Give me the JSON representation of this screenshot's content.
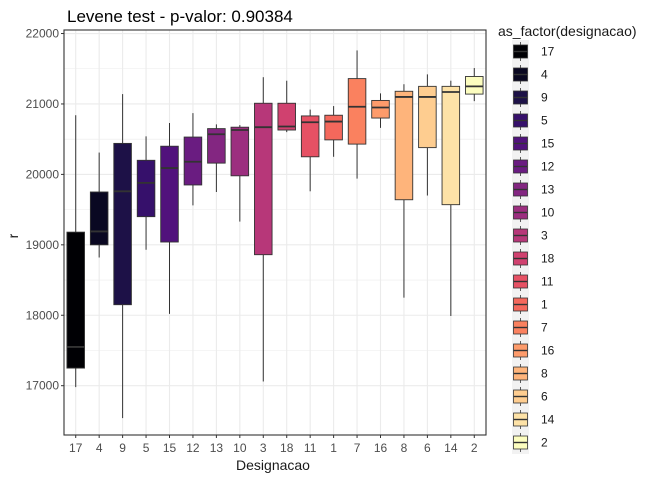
{
  "chart_data": {
    "type": "boxplot",
    "title": "Levene test - p-valor:  0.90384",
    "xlabel": "Designacao",
    "ylabel": "r",
    "ylim": [
      16300,
      22050
    ],
    "y_ticks": [
      17000,
      18000,
      19000,
      20000,
      21000,
      22000
    ],
    "grid": true,
    "legend": {
      "title": "as_factor(designacao)",
      "position": "right"
    },
    "categories": [
      "17",
      "4",
      "9",
      "5",
      "15",
      "12",
      "13",
      "10",
      "3",
      "18",
      "11",
      "1",
      "7",
      "16",
      "8",
      "6",
      "14",
      "2"
    ],
    "boxes": [
      {
        "name": "17",
        "min": 16980,
        "q1": 17250,
        "median": 17550,
        "q3": 19180,
        "max": 20840,
        "color": "#000004"
      },
      {
        "name": "4",
        "min": 18820,
        "q1": 19000,
        "median": 19190,
        "q3": 19750,
        "max": 20310,
        "color": "#0a0822"
      },
      {
        "name": "9",
        "min": 16540,
        "q1": 18150,
        "median": 19760,
        "q3": 20440,
        "max": 21140,
        "color": "#1d1147"
      },
      {
        "name": "5",
        "min": 18930,
        "q1": 19400,
        "median": 19880,
        "q3": 20200,
        "max": 20540,
        "color": "#36106b"
      },
      {
        "name": "15",
        "min": 18020,
        "q1": 19040,
        "median": 20090,
        "q3": 20400,
        "max": 20730,
        "color": "#51127c"
      },
      {
        "name": "12",
        "min": 19560,
        "q1": 19850,
        "median": 20180,
        "q3": 20530,
        "max": 20870,
        "color": "#6a1c81"
      },
      {
        "name": "13",
        "min": 19750,
        "q1": 20160,
        "median": 20570,
        "q3": 20650,
        "max": 20710,
        "color": "#832681"
      },
      {
        "name": "10",
        "min": 19330,
        "q1": 19980,
        "median": 20630,
        "q3": 20670,
        "max": 20700,
        "color": "#9c2e7f"
      },
      {
        "name": "3",
        "min": 17060,
        "q1": 18860,
        "median": 20670,
        "q3": 21010,
        "max": 21380,
        "color": "#b73779"
      },
      {
        "name": "18",
        "min": 20600,
        "q1": 20630,
        "median": 20680,
        "q3": 21010,
        "max": 21330,
        "color": "#d0416f"
      },
      {
        "name": "11",
        "min": 19760,
        "q1": 20250,
        "median": 20740,
        "q3": 20830,
        "max": 20920,
        "color": "#e65164"
      },
      {
        "name": "1",
        "min": 20250,
        "q1": 20490,
        "median": 20750,
        "q3": 20840,
        "max": 20970,
        "color": "#f4685c"
      },
      {
        "name": "7",
        "min": 19940,
        "q1": 20430,
        "median": 20960,
        "q3": 21360,
        "max": 21760,
        "color": "#fa815f"
      },
      {
        "name": "16",
        "min": 20660,
        "q1": 20800,
        "median": 20950,
        "q3": 21050,
        "max": 21150,
        "color": "#fd9b6b"
      },
      {
        "name": "8",
        "min": 18250,
        "q1": 19640,
        "median": 21100,
        "q3": 21180,
        "max": 21280,
        "color": "#feb47b"
      },
      {
        "name": "6",
        "min": 19700,
        "q1": 20380,
        "median": 21100,
        "q3": 21250,
        "max": 21420,
        "color": "#fecd90"
      },
      {
        "name": "14",
        "min": 17990,
        "q1": 19570,
        "median": 21170,
        "q3": 21250,
        "max": 21330,
        "color": "#fde2a7"
      },
      {
        "name": "2",
        "min": 21040,
        "q1": 21140,
        "median": 21250,
        "q3": 21390,
        "max": 21510,
        "color": "#fcfdbf"
      }
    ]
  }
}
